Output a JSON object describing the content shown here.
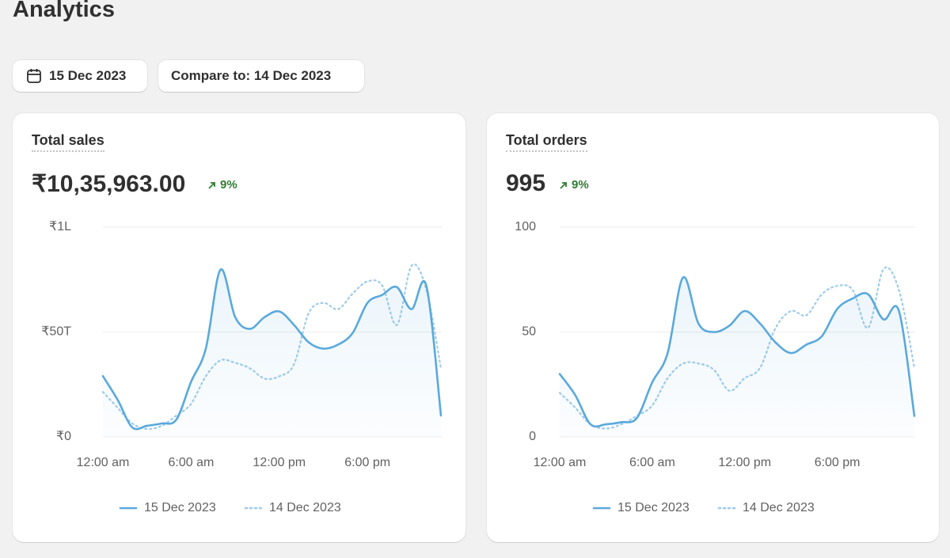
{
  "header": {
    "title": "Analytics"
  },
  "controls": {
    "date": "15 Dec 2023",
    "compare": "Compare to: 14 Dec 2023"
  },
  "chart_data": [
    {
      "type": "line",
      "title": "Total sales",
      "value": "₹10,35,963.00",
      "change": "9%",
      "categories": [
        "12:00 am",
        null,
        null,
        null,
        null,
        null,
        "6:00 am",
        null,
        null,
        null,
        null,
        null,
        "12:00 pm",
        null,
        null,
        null,
        null,
        null,
        "6:00 pm",
        null,
        null,
        null,
        null,
        null
      ],
      "ylim": [
        0,
        100000
      ],
      "yticks": [
        {
          "value": 0,
          "label": "₹0"
        },
        {
          "value": 50000,
          "label": "₹50T"
        },
        {
          "value": 100000,
          "label": "₹1L"
        }
      ],
      "grid": true,
      "series": [
        {
          "name": "15 Dec 2023",
          "color": "#5aa9dc",
          "style": "solid",
          "values": [
            29000,
            17700,
            4500,
            5300,
            6400,
            8300,
            26300,
            42100,
            79700,
            57100,
            51500,
            57100,
            59800,
            53400,
            45100,
            42100,
            44000,
            49600,
            63900,
            67700,
            71400,
            60900,
            72200,
            10200
          ]
        },
        {
          "name": "14 Dec 2023",
          "color": "#9fcbe8",
          "style": "dotted",
          "values": [
            21400,
            13900,
            6400,
            3800,
            5300,
            10200,
            15800,
            28900,
            36500,
            35300,
            32700,
            27800,
            28900,
            34600,
            59000,
            63900,
            60900,
            68400,
            74100,
            72200,
            53400,
            81600,
            70300,
            32700
          ]
        }
      ]
    },
    {
      "type": "line",
      "title": "Total orders",
      "value": "995",
      "change": "9%",
      "categories": [
        "12:00 am",
        null,
        null,
        null,
        null,
        null,
        "6:00 am",
        null,
        null,
        null,
        null,
        null,
        "12:00 pm",
        null,
        null,
        null,
        null,
        null,
        "6:00 pm",
        null,
        null,
        null,
        null,
        null
      ],
      "ylim": [
        0,
        100
      ],
      "yticks": [
        0,
        50,
        100
      ],
      "grid": true,
      "series": [
        {
          "name": "15 Dec 2023",
          "color": "#5aa9dc",
          "style": "solid",
          "values": [
            30,
            20,
            6,
            6,
            7,
            9,
            26,
            40,
            76,
            54,
            50,
            53,
            60,
            54,
            45,
            40,
            44,
            48,
            61,
            66,
            68,
            56,
            60,
            10
          ]
        },
        {
          "name": "14 Dec 2023",
          "color": "#9fcbe8",
          "style": "dotted",
          "values": [
            21,
            14,
            6,
            4,
            6,
            10,
            15,
            28,
            35,
            35,
            32,
            22,
            28,
            33,
            52,
            60,
            58,
            68,
            72,
            70,
            52,
            80,
            70,
            33
          ]
        }
      ]
    }
  ]
}
